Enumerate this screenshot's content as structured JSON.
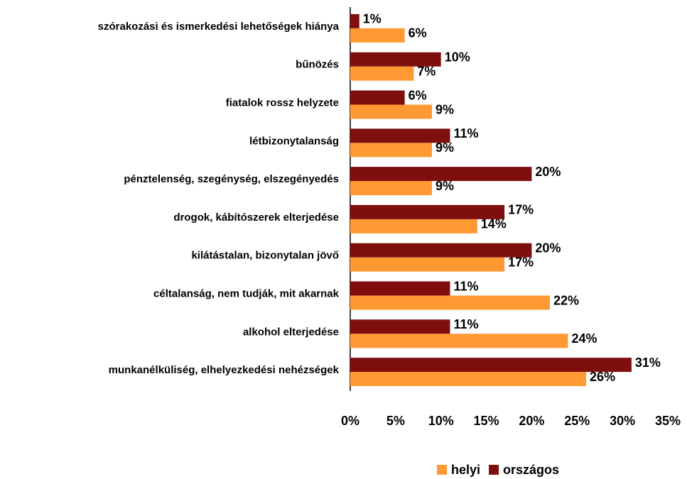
{
  "chart_data": {
    "type": "bar",
    "orientation": "horizontal",
    "categories": [
      "szórakozási és ismerkedési lehetőségek hiánya",
      "bűnözés",
      "fiatalok rossz helyzete",
      "létbizonytalanság",
      "pénztelenség, szegénység, elszegényedés",
      "drogok, kábítószerek elterjedése",
      "kilátástalan, bizonytalan jövő",
      "céltalanság, nem tudják, mit akarnak",
      "alkohol elterjedése",
      "munkanélküliség, elhelyezkedési nehézségek"
    ],
    "series": [
      {
        "name": "helyi",
        "color": "#ff9933",
        "values": [
          6,
          7,
          9,
          9,
          9,
          14,
          17,
          22,
          24,
          26
        ],
        "value_labels": [
          "6%",
          "7%",
          "9%",
          "9%",
          "9%",
          "14%",
          "17%",
          "22%",
          "24%",
          "26%"
        ]
      },
      {
        "name": "országos",
        "color": "#7f0f0f",
        "values": [
          1,
          10,
          6,
          11,
          20,
          17,
          20,
          11,
          11,
          31
        ],
        "value_labels": [
          "1%",
          "10%",
          "6%",
          "11%",
          "20%",
          "17%",
          "20%",
          "11%",
          "11%",
          "31%"
        ]
      }
    ],
    "xlim": [
      0,
      35
    ],
    "xticks": [
      {
        "value": 0,
        "label": "0%"
      },
      {
        "value": 5,
        "label": "5%"
      },
      {
        "value": 10,
        "label": "10%"
      },
      {
        "value": 15,
        "label": "15%"
      },
      {
        "value": 20,
        "label": "20%"
      },
      {
        "value": 25,
        "label": "25%"
      },
      {
        "value": 30,
        "label": "30%"
      },
      {
        "value": 35,
        "label": "35%"
      }
    ],
    "grid": false,
    "legend": "bottom"
  }
}
